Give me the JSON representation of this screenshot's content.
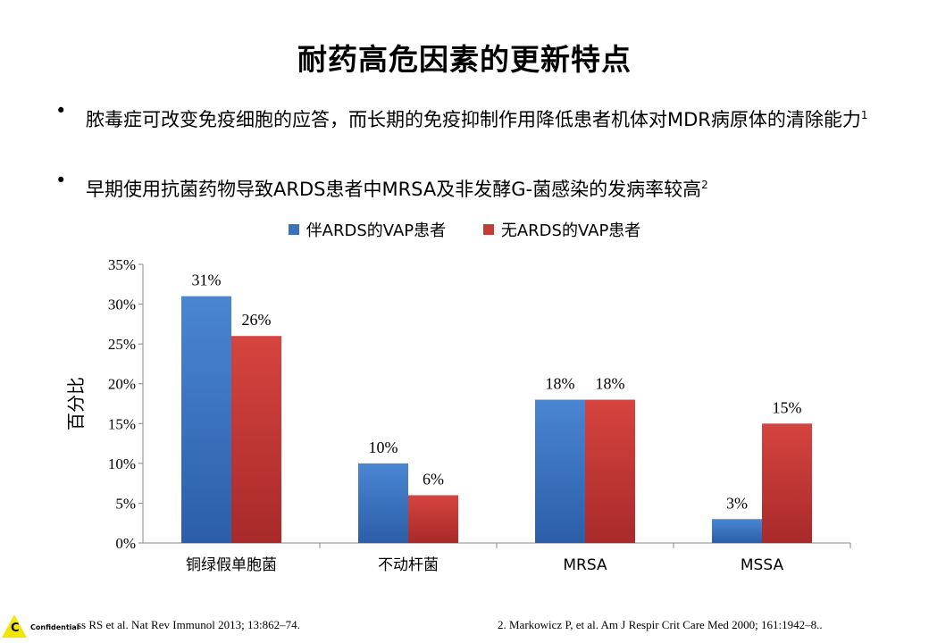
{
  "slide": {
    "title": "耐药高危因素的更新特点",
    "bullet_char": "•",
    "bullets": [
      {
        "text": "脓毒症可改变免疫细胞的应答，而长期的免疫抑制作用降低患者机体对MDR病原体的清除能力",
        "sup": "1"
      },
      {
        "text": "早期使用抗菌药物导致ARDS患者中MRSA及非发酵G-菌感染的发病率较高",
        "sup": "2"
      }
    ],
    "footer": {
      "confidential_label": "Confidential",
      "confidential_letter": "C",
      "ref1": "ss RS et al. Nat Rev Immunol 2013; 13:862–74.",
      "ref2": "2. Markowicz P, et al. Am J Respir Crit Care Med 2000; 161:1942–8.."
    }
  },
  "chart_data": {
    "type": "bar",
    "categories": [
      "铜绿假单胞菌",
      "不动杆菌",
      "MRSA",
      "MSSA"
    ],
    "series": [
      {
        "name": "伴ARDS的VAP患者",
        "values": [
          31,
          10,
          18,
          3
        ],
        "color": "#3a72c0"
      },
      {
        "name": "无ARDS的VAP患者",
        "values": [
          26,
          6,
          18,
          15
        ],
        "color": "#c83a36"
      }
    ],
    "data_labels": [
      [
        "31%",
        "10%",
        "18%",
        "3%"
      ],
      [
        "26%",
        "6%",
        "18%",
        "15%"
      ]
    ],
    "ylabel": "百分比",
    "ylim": [
      0,
      35
    ],
    "yticks": [
      "0%",
      "5%",
      "10%",
      "15%",
      "20%",
      "25%",
      "30%",
      "35%"
    ],
    "legend_position": "top",
    "grid": false
  }
}
